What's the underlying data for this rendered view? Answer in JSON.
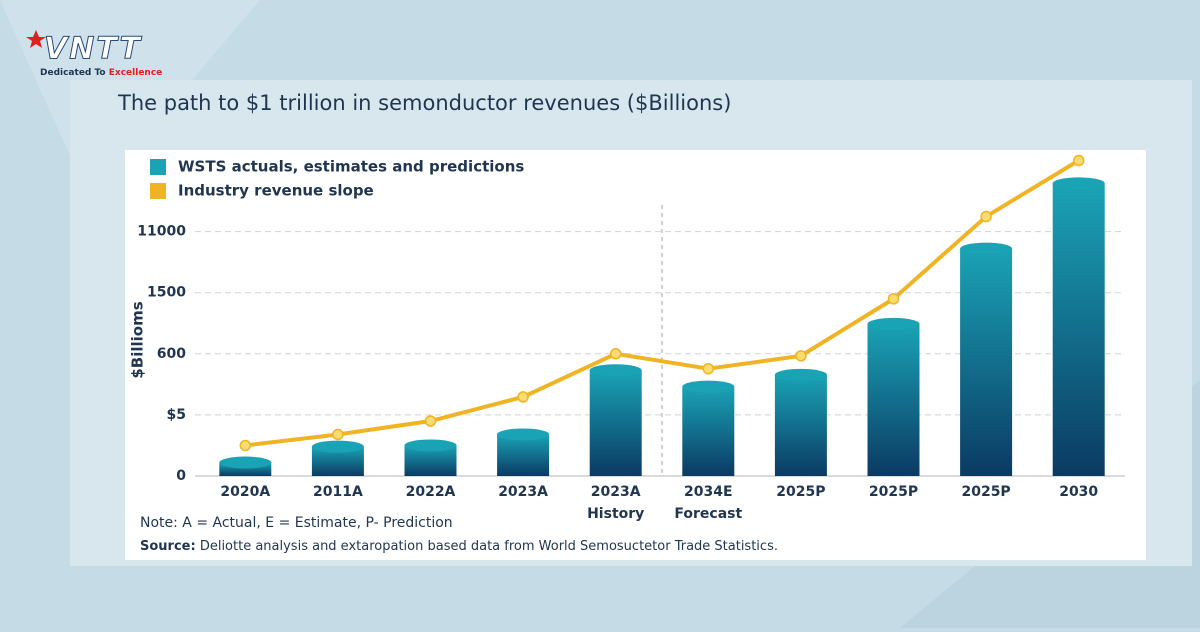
{
  "logo": {
    "text": "VNTT",
    "tagline": "Dedicated To ",
    "tagline_highlight": "Excellence"
  },
  "chart_data": {
    "type": "bar_line",
    "title": "The path to $1 trillion in semonductor revenues ($Billions)",
    "y_label": "$Billioms",
    "categories": [
      "2020A",
      "2011A",
      "2022A",
      "2023A",
      "2023A",
      "2034E",
      "2025P",
      "2025P",
      "2025P",
      "2030"
    ],
    "period_labels": [
      "History",
      "Forecast"
    ],
    "series": [
      {
        "name": "WSTS actuals, estimates and predictions",
        "type": "bar",
        "color": "#1aa3b5",
        "values": [
          1.1,
          2.4,
          2.5,
          3.4,
          440,
          280,
          395,
          1040,
          8350,
          18500
        ]
      },
      {
        "name": "Industry revenue slope",
        "type": "line",
        "color": "#f0b323",
        "values": [
          2.5,
          3.4,
          4.5,
          180,
          600,
          455,
          580,
          1410,
          13340,
          22060
        ]
      }
    ],
    "yscale": "piecewise",
    "ylim": [
      0,
      24000
    ],
    "yticks": [
      0,
      {
        "value": 5,
        "label": "$5"
      },
      600,
      1500,
      11000
    ],
    "grid": true,
    "note": "Note: A = Actual, E = Estimate, P- Prediction",
    "source": {
      "label": "Source:",
      "text": " Deliotte analysis and extaropation based data from World Semosuctetor Trade Statistics."
    }
  }
}
